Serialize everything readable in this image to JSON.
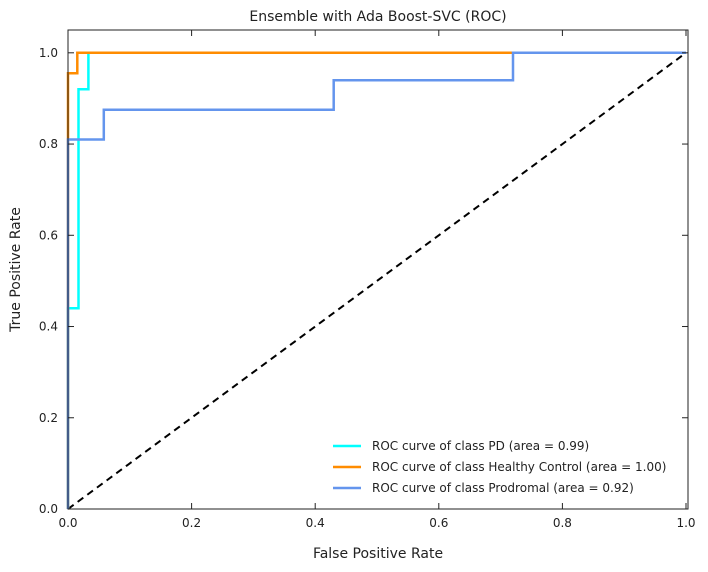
{
  "chart_data": {
    "type": "line",
    "title": "Ensemble with Ada Boost-SVC (ROC)",
    "xlabel": "False Positive Rate",
    "ylabel": "True Positive Rate",
    "xlim": [
      0.0,
      1.0
    ],
    "ylim": [
      0.0,
      1.05
    ],
    "xticks": [
      0.0,
      0.2,
      0.4,
      0.6,
      0.8,
      1.0
    ],
    "xtick_labels": [
      "0.0",
      "0.2",
      "0.4",
      "0.6",
      "0.8",
      "1.0"
    ],
    "yticks": [
      0.0,
      0.2,
      0.4,
      0.6,
      0.8,
      1.0
    ],
    "ytick_labels": [
      "0.0",
      "0.2",
      "0.4",
      "0.6",
      "0.8",
      "1.0"
    ],
    "grid": false,
    "legend_position": "lower-right",
    "series": [
      {
        "name": "ROC curve of class PD (area = 0.99)",
        "color": "#00ffff",
        "x": [
          0.0,
          0.0,
          0.0,
          0.017,
          0.017,
          0.033,
          0.033,
          1.0
        ],
        "y": [
          0.0,
          0.44,
          0.44,
          0.44,
          0.92,
          0.92,
          1.0,
          1.0
        ]
      },
      {
        "name": "ROC curve of class Healthy Control (area = 1.00)",
        "color": "#ff8c00",
        "x": [
          0.0,
          0.0,
          0.0,
          0.015,
          0.015,
          1.0
        ],
        "y": [
          0.0,
          0.955,
          0.955,
          0.955,
          1.0,
          1.0
        ]
      },
      {
        "name": "ROC curve of class Prodromal (area = 0.92)",
        "color": "#6495ed",
        "x": [
          0.0,
          0.0,
          0.058,
          0.058,
          0.43,
          0.43,
          0.72,
          0.72,
          1.0
        ],
        "y": [
          0.0,
          0.81,
          0.81,
          0.875,
          0.875,
          0.94,
          0.94,
          1.0,
          1.0
        ]
      }
    ],
    "reference_line": {
      "color": "#000000",
      "style": "dashed",
      "x": [
        0.0,
        1.0
      ],
      "y": [
        0.0,
        1.0
      ]
    }
  }
}
